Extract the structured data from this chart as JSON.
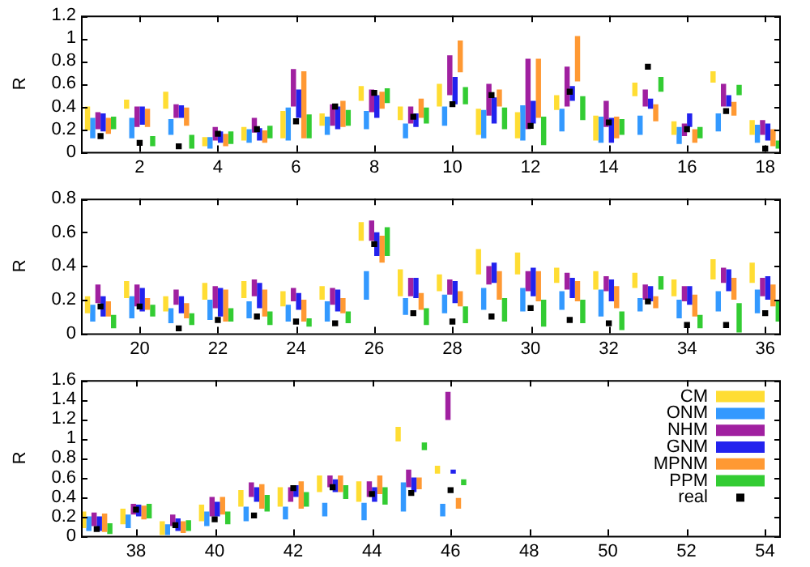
{
  "chart_data": [
    {
      "type": "bar",
      "ylabel": "R",
      "x": [
        1,
        2,
        3,
        4,
        5,
        6,
        7,
        8,
        9,
        10,
        11,
        12,
        13,
        14,
        15,
        16,
        17,
        18
      ],
      "xlim": [
        0.5,
        18.4
      ],
      "xticks": [
        2,
        4,
        6,
        8,
        10,
        12,
        14,
        16,
        18
      ],
      "ylim": [
        0,
        1.2
      ],
      "yticks": [
        0,
        0.2,
        0.4,
        0.6,
        0.8,
        {
          "value": 1,
          "label": "1"
        },
        1.2
      ],
      "grid": false,
      "legend": false,
      "series": [
        {
          "color": "#ffdd33",
          "base": [
            0.19,
            0.38,
            0.38,
            0.05,
            0.1,
            0.12,
            0.23,
            0.45,
            0.28,
            0.4,
            0.15,
            0.12,
            0.37,
            0.1,
            0.49,
            0.15,
            0.61,
            0.15
          ],
          "values": [
            0.21,
            0.08,
            0.15,
            0.08,
            0.12,
            0.24,
            0.11,
            0.13,
            0.12,
            0.2,
            0.23,
            0.23,
            0.13,
            0.22,
            0.12,
            0.12,
            0.1,
            0.13
          ]
        },
        {
          "color": "#3399ff",
          "base": [
            0.12,
            0.12,
            0.15,
            0.03,
            0.08,
            0.1,
            0.15,
            0.2,
            0.12,
            0.23,
            0.12,
            0.1,
            0.18,
            0.08,
            0.15,
            0.07,
            0.18,
            0.08
          ],
          "values": [
            0.18,
            0.18,
            0.14,
            0.1,
            0.12,
            0.29,
            0.16,
            0.16,
            0.13,
            0.17,
            0.25,
            0.31,
            0.2,
            0.23,
            0.17,
            0.15,
            0.16,
            0.16
          ]
        },
        {
          "color": "#a020a0",
          "base": [
            0.2,
            0.22,
            0.3,
            0.1,
            0.17,
            0.4,
            0.23,
            0.35,
            0.25,
            0.5,
            0.32,
            0.2,
            0.4,
            0.22,
            0.4,
            0.14,
            0.4,
            0.15
          ],
          "values": [
            0.15,
            0.18,
            0.12,
            0.12,
            0.13,
            0.33,
            0.19,
            0.2,
            0.15,
            0.35,
            0.28,
            0.62,
            0.35,
            0.23,
            0.15,
            0.11,
            0.2,
            0.13
          ]
        },
        {
          "color": "#2222ee",
          "base": [
            0.18,
            0.24,
            0.3,
            0.08,
            0.1,
            0.3,
            0.2,
            0.3,
            0.22,
            0.42,
            0.25,
            0.25,
            0.45,
            0.08,
            0.38,
            0.22,
            0.4,
            0.1
          ],
          "values": [
            0.16,
            0.16,
            0.11,
            0.1,
            0.11,
            0.25,
            0.2,
            0.2,
            0.12,
            0.24,
            0.23,
            0.2,
            0.13,
            0.22,
            0.09,
            0.12,
            0.1,
            0.15
          ]
        },
        {
          "color": "#ff9933",
          "base": [
            0.16,
            0.22,
            0.23,
            0.05,
            0.08,
            0.12,
            0.22,
            0.38,
            0.3,
            0.7,
            0.4,
            0.3,
            0.62,
            0.12,
            0.27,
            0.08,
            0.32,
            0.05
          ],
          "values": [
            0.14,
            0.16,
            0.16,
            0.11,
            0.11,
            0.59,
            0.23,
            0.15,
            0.17,
            0.28,
            0.15,
            0.52,
            0.4,
            0.19,
            0.15,
            0.12,
            0.12,
            0.15
          ]
        },
        {
          "color": "#33cc33",
          "base": [
            0.2,
            0.05,
            0.03,
            0.07,
            0.12,
            0.12,
            0.23,
            0.43,
            0.25,
            0.42,
            0.2,
            0.06,
            0.28,
            0.15,
            0.53,
            0.12,
            0.5,
            0.03
          ],
          "values": [
            0.11,
            0.09,
            0.12,
            0.11,
            0.11,
            0.21,
            0.14,
            0.13,
            0.14,
            0.15,
            0.19,
            0.25,
            0.21,
            0.14,
            0.13,
            0.1,
            0.09,
            0.07
          ]
        },
        {
          "type": "scatter",
          "marker": "square",
          "color": "#000000",
          "values": [
            0.14,
            0.08,
            0.05,
            0.16,
            0.2,
            0.27,
            0.4,
            0.52,
            0.31,
            0.42,
            0.5,
            0.23,
            0.53,
            0.26,
            0.75,
            0.2,
            0.36,
            0.03
          ]
        }
      ]
    },
    {
      "type": "bar",
      "ylabel": "R",
      "x": [
        19,
        20,
        21,
        22,
        23,
        24,
        25,
        26,
        27,
        28,
        29,
        30,
        31,
        32,
        33,
        34,
        35,
        36
      ],
      "xlim": [
        18.5,
        36.4
      ],
      "xticks": [
        20,
        22,
        24,
        26,
        28,
        30,
        32,
        34,
        36
      ],
      "ylim": [
        0,
        0.8
      ],
      "yticks": [
        0,
        0.2,
        0.4,
        0.6,
        0.8
      ],
      "grid": false,
      "legend": false,
      "series": [
        {
          "color": "#ffdd33",
          "base": [
            0.12,
            0.21,
            0.13,
            0.2,
            0.21,
            0.16,
            0.2,
            0.55,
            0.22,
            0.25,
            0.35,
            0.35,
            0.3,
            0.26,
            0.27,
            0.22,
            0.32,
            0.3
          ],
          "values": [
            0.1,
            0.1,
            0.09,
            0.1,
            0.1,
            0.09,
            0.08,
            0.11,
            0.16,
            0.1,
            0.15,
            0.13,
            0.09,
            0.11,
            0.09,
            0.1,
            0.12,
            0.12
          ]
        },
        {
          "color": "#3399ff",
          "base": [
            0.07,
            0.09,
            0.06,
            0.08,
            0.09,
            0.07,
            0.07,
            0.2,
            0.11,
            0.12,
            0.14,
            0.13,
            0.14,
            0.1,
            0.13,
            0.09,
            0.13,
            0.12
          ],
          "values": [
            0.1,
            0.13,
            0.09,
            0.12,
            0.1,
            0.1,
            0.12,
            0.17,
            0.1,
            0.11,
            0.13,
            0.14,
            0.11,
            0.16,
            0.08,
            0.11,
            0.12,
            0.14
          ]
        },
        {
          "color": "#a020a0",
          "base": [
            0.18,
            0.16,
            0.17,
            0.15,
            0.22,
            0.19,
            0.17,
            0.55,
            0.22,
            0.23,
            0.29,
            0.25,
            0.26,
            0.25,
            0.2,
            0.19,
            0.3,
            0.22
          ],
          "values": [
            0.11,
            0.13,
            0.09,
            0.13,
            0.1,
            0.08,
            0.1,
            0.12,
            0.11,
            0.09,
            0.11,
            0.12,
            0.1,
            0.09,
            0.09,
            0.09,
            0.09,
            0.11
          ]
        },
        {
          "color": "#2222ee",
          "base": [
            0.1,
            0.13,
            0.12,
            0.1,
            0.15,
            0.14,
            0.13,
            0.46,
            0.21,
            0.18,
            0.3,
            0.22,
            0.21,
            0.19,
            0.19,
            0.17,
            0.25,
            0.2
          ],
          "values": [
            0.12,
            0.14,
            0.1,
            0.17,
            0.15,
            0.1,
            0.13,
            0.14,
            0.12,
            0.13,
            0.12,
            0.17,
            0.12,
            0.13,
            0.09,
            0.11,
            0.13,
            0.14
          ]
        },
        {
          "color": "#ff9933",
          "base": [
            0.1,
            0.14,
            0.09,
            0.07,
            0.1,
            0.07,
            0.12,
            0.42,
            0.14,
            0.16,
            0.2,
            0.19,
            0.19,
            0.15,
            0.15,
            0.1,
            0.2,
            0.16
          ],
          "values": [
            0.09,
            0.07,
            0.09,
            0.19,
            0.16,
            0.13,
            0.09,
            0.16,
            0.1,
            0.09,
            0.17,
            0.18,
            0.12,
            0.13,
            0.07,
            0.13,
            0.13,
            0.13
          ]
        },
        {
          "color": "#33cc33",
          "base": [
            0.03,
            0.1,
            0.05,
            0.07,
            0.05,
            0.04,
            0.06,
            0.46,
            0.05,
            0.06,
            0.07,
            0.04,
            0.06,
            0.02,
            0.26,
            0.03,
            0.0,
            0.07
          ],
          "values": [
            0.08,
            0.07,
            0.07,
            0.08,
            0.08,
            0.05,
            0.07,
            0.17,
            0.1,
            0.1,
            0.14,
            0.16,
            0.14,
            0.11,
            0.08,
            0.08,
            0.18,
            0.12
          ]
        },
        {
          "type": "scatter",
          "marker": "square",
          "color": "#000000",
          "values": [
            0.16,
            0.16,
            0.03,
            0.08,
            0.1,
            0.07,
            0.06,
            0.53,
            0.12,
            0.07,
            0.1,
            0.15,
            0.08,
            0.06,
            0.19,
            0.05,
            0.05,
            0.12
          ]
        }
      ]
    },
    {
      "type": "bar",
      "ylabel": "R",
      "x": [
        37,
        38,
        39,
        40,
        41,
        42,
        43,
        44,
        45,
        46
      ],
      "xlim": [
        36.6,
        54.4
      ],
      "xticks": [
        38,
        40,
        42,
        44,
        46,
        48,
        50,
        52,
        54
      ],
      "ylim": [
        0,
        1.6
      ],
      "yticks": [
        0,
        0.2,
        0.4,
        0.6,
        0.8,
        {
          "value": 1,
          "label": "1"
        },
        1.2,
        1.4,
        1.6
      ],
      "grid": false,
      "legend": "top right",
      "series": [
        {
          "name": "CM",
          "color": "#ffdd33",
          "base": [
            0.08,
            0.12,
            0.0,
            0.15,
            0.3,
            0.3,
            0.45,
            0.35,
            0.97,
            0.64
          ],
          "values": [
            0.17,
            0.16,
            0.15,
            0.17,
            0.17,
            0.2,
            0.17,
            0.21,
            0.15,
            0.08
          ]
        },
        {
          "name": "ONM",
          "color": "#3399ff",
          "base": [
            0.05,
            0.08,
            0.0,
            0.1,
            0.15,
            0.17,
            0.2,
            0.16,
            0.25,
            0.2
          ],
          "values": [
            0.15,
            0.14,
            0.12,
            0.15,
            0.15,
            0.13,
            0.14,
            0.18,
            0.3,
            0.13
          ]
        },
        {
          "name": "NHM",
          "color": "#a020a0",
          "base": [
            0.1,
            0.22,
            0.1,
            0.2,
            0.4,
            0.35,
            0.5,
            0.4,
            0.5,
            1.19
          ],
          "values": [
            0.14,
            0.11,
            0.12,
            0.2,
            0.15,
            0.15,
            0.12,
            0.16,
            0.18,
            0.29
          ]
        },
        {
          "name": "GNM",
          "color": "#2222ee",
          "base": [
            0.05,
            0.2,
            0.05,
            0.2,
            0.35,
            0.4,
            0.45,
            0.35,
            0.45,
            0.64
          ],
          "values": [
            0.15,
            0.12,
            0.13,
            0.15,
            0.15,
            0.12,
            0.13,
            0.15,
            0.15,
            0.04
          ]
        },
        {
          "name": "MPNM",
          "color": "#ff9933",
          "base": [
            0.04,
            0.17,
            0.03,
            0.22,
            0.28,
            0.28,
            0.45,
            0.43,
            0.48,
            0.28
          ],
          "values": [
            0.19,
            0.14,
            0.12,
            0.18,
            0.25,
            0.28,
            0.17,
            0.19,
            0.12,
            0.11
          ]
        },
        {
          "name": "PPM",
          "color": "#33cc33",
          "base": [
            0.02,
            0.18,
            0.05,
            0.12,
            0.25,
            0.3,
            0.38,
            0.32,
            0.88,
            0.52
          ],
          "values": [
            0.11,
            0.15,
            0.11,
            0.13,
            0.17,
            0.15,
            0.14,
            0.18,
            0.08,
            0.06
          ]
        },
        {
          "name": "real",
          "type": "scatter",
          "marker": "square",
          "color": "#000000",
          "values": [
            0.07,
            0.27,
            0.11,
            0.17,
            0.21,
            0.49,
            0.5,
            0.43,
            0.44,
            0.47
          ]
        }
      ]
    }
  ]
}
